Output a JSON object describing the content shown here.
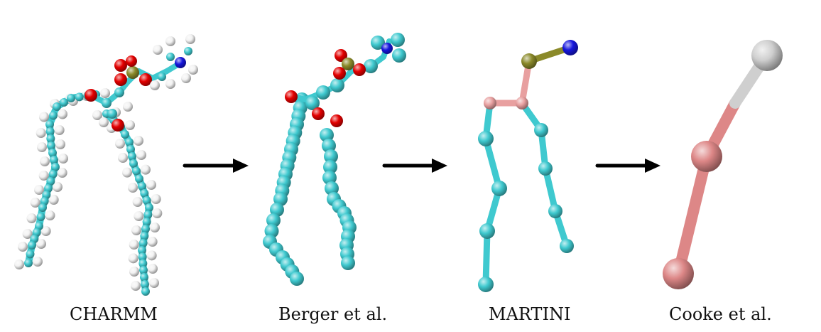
{
  "figure": {
    "panels": [
      {
        "label": "CHARMM",
        "model": "all-atom"
      },
      {
        "label": "Berger et al.",
        "model": "united-atom"
      },
      {
        "label": "MARTINI",
        "model": "coarse-grained"
      },
      {
        "label": "Cooke et al.",
        "model": "three-bead"
      }
    ],
    "arrow_count": 3
  },
  "colors": {
    "carbon": "#3fc9cf",
    "hydrogen": "#f2f2f2",
    "oxygen": "#e30000",
    "phosphorus": "#8b8a2a",
    "nitrogen": "#1616dd",
    "glycerol": "#e8a0a0",
    "cooke_tail": "#dd8787",
    "cooke_head": "#cfcfcf",
    "arrow": "#000000"
  }
}
